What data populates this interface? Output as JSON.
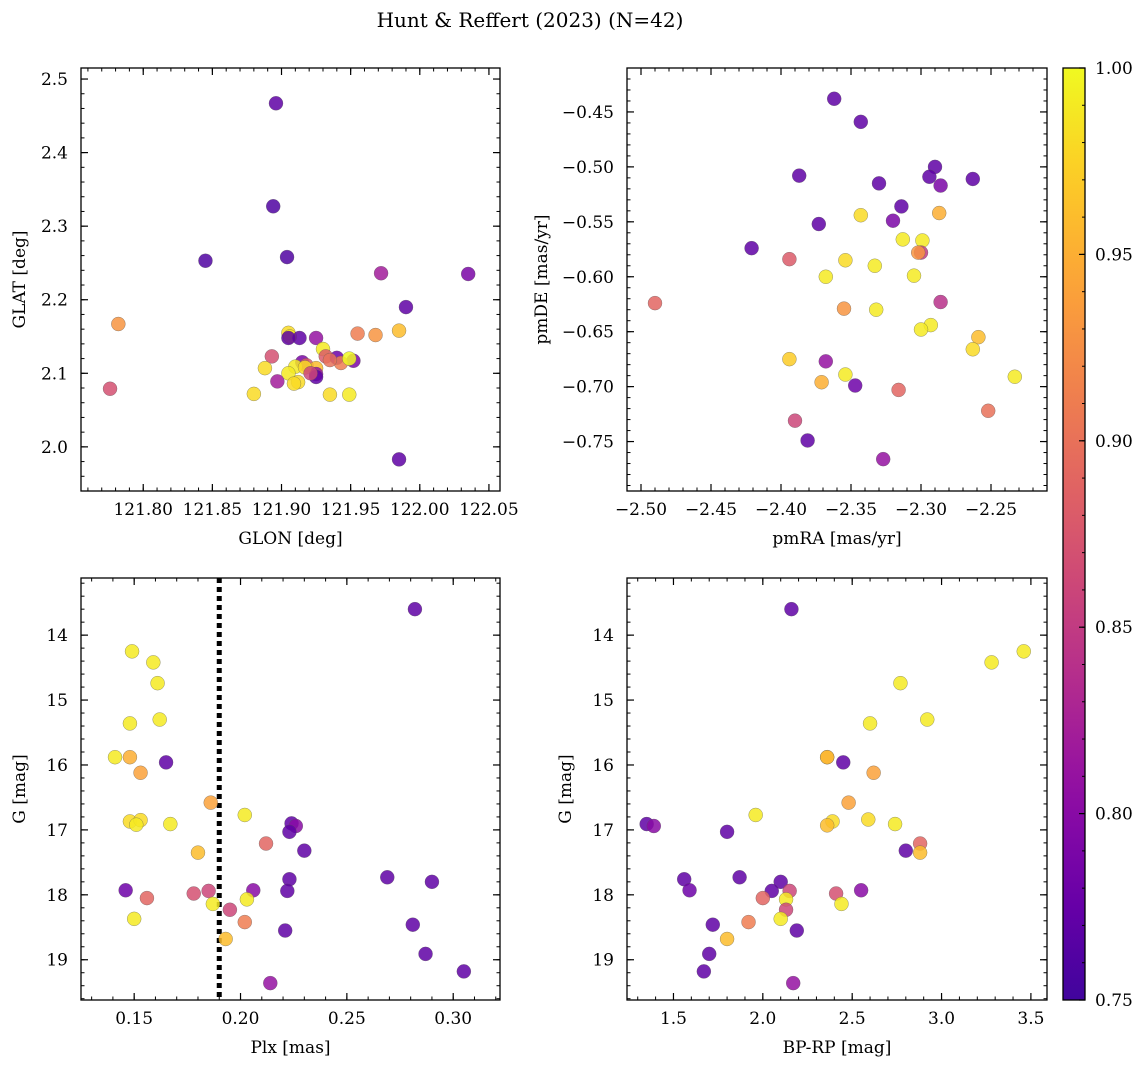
{
  "title": "Hunt & Reffert (2023) (N=42)",
  "colorbar": {
    "min": 0.75,
    "max": 1.0,
    "ticks": [
      0.75,
      0.8,
      0.85,
      0.9,
      0.95,
      1.0
    ],
    "tick_labels": [
      "0.75",
      "0.80",
      "0.85",
      "0.90",
      "0.95",
      "1.00"
    ],
    "colormap": "plasma"
  },
  "chart_data": [
    {
      "type": "scatter",
      "panel": "top-left",
      "xlabel": "GLON [deg]",
      "ylabel": "GLAT [deg]",
      "xlim": [
        121.755,
        122.058
      ],
      "ylim": [
        1.94,
        2.515
      ],
      "y_inverted": false,
      "xticks": [
        121.75,
        121.8,
        121.85,
        121.9,
        121.95,
        122.0,
        122.05
      ],
      "xtick_labels": [
        "121.75",
        "121.80",
        "121.85",
        "121.90",
        "121.95",
        "122.00",
        "122.05"
      ],
      "yticks": [
        2.0,
        2.1,
        2.2,
        2.3,
        2.4,
        2.5
      ],
      "ytick_labels": [
        "2.0",
        "2.1",
        "2.2",
        "2.3",
        "2.4",
        "2.5"
      ],
      "points": [
        {
          "x": 121.896,
          "y": 2.467,
          "c": 0.77
        },
        {
          "x": 121.894,
          "y": 2.327,
          "c": 0.76
        },
        {
          "x": 121.845,
          "y": 2.253,
          "c": 0.76
        },
        {
          "x": 121.904,
          "y": 2.258,
          "c": 0.76
        },
        {
          "x": 121.972,
          "y": 2.236,
          "c": 0.82
        },
        {
          "x": 122.035,
          "y": 2.235,
          "c": 0.79
        },
        {
          "x": 121.99,
          "y": 2.19,
          "c": 0.77
        },
        {
          "x": 121.782,
          "y": 2.167,
          "c": 0.93
        },
        {
          "x": 121.776,
          "y": 2.079,
          "c": 0.87
        },
        {
          "x": 121.955,
          "y": 2.154,
          "c": 0.91
        },
        {
          "x": 121.968,
          "y": 2.152,
          "c": 0.93
        },
        {
          "x": 121.985,
          "y": 2.158,
          "c": 0.96
        },
        {
          "x": 121.905,
          "y": 2.155,
          "c": 0.98
        },
        {
          "x": 121.906,
          "y": 2.15,
          "c": 0.99
        },
        {
          "x": 121.913,
          "y": 2.148,
          "c": 0.77
        },
        {
          "x": 121.905,
          "y": 2.148,
          "c": 0.77
        },
        {
          "x": 121.925,
          "y": 2.148,
          "c": 0.81
        },
        {
          "x": 121.93,
          "y": 2.133,
          "c": 0.99
        },
        {
          "x": 121.893,
          "y": 2.123,
          "c": 0.87
        },
        {
          "x": 121.932,
          "y": 2.123,
          "c": 0.88
        },
        {
          "x": 121.94,
          "y": 2.121,
          "c": 0.78
        },
        {
          "x": 121.952,
          "y": 2.117,
          "c": 0.79
        },
        {
          "x": 121.943,
          "y": 2.114,
          "c": 0.91
        },
        {
          "x": 121.915,
          "y": 2.115,
          "c": 0.79
        },
        {
          "x": 121.918,
          "y": 2.111,
          "c": 0.88
        },
        {
          "x": 121.91,
          "y": 2.109,
          "c": 0.99
        },
        {
          "x": 121.888,
          "y": 2.107,
          "c": 0.98
        },
        {
          "x": 121.925,
          "y": 2.107,
          "c": 0.96
        },
        {
          "x": 121.905,
          "y": 2.1,
          "c": 0.99
        },
        {
          "x": 121.925,
          "y": 2.099,
          "c": 0.81
        },
        {
          "x": 121.925,
          "y": 2.095,
          "c": 0.77
        },
        {
          "x": 121.897,
          "y": 2.089,
          "c": 0.82
        },
        {
          "x": 121.912,
          "y": 2.088,
          "c": 0.98
        },
        {
          "x": 121.909,
          "y": 2.086,
          "c": 0.98
        },
        {
          "x": 121.88,
          "y": 2.072,
          "c": 0.98
        },
        {
          "x": 121.935,
          "y": 2.071,
          "c": 0.98
        },
        {
          "x": 121.949,
          "y": 2.071,
          "c": 0.99
        },
        {
          "x": 121.985,
          "y": 1.983,
          "c": 0.77
        },
        {
          "x": 121.949,
          "y": 2.12,
          "c": 1.0
        },
        {
          "x": 121.917,
          "y": 2.108,
          "c": 0.98
        },
        {
          "x": 121.935,
          "y": 2.118,
          "c": 0.9
        },
        {
          "x": 121.921,
          "y": 2.1,
          "c": 0.86
        }
      ]
    },
    {
      "type": "scatter",
      "panel": "top-right",
      "xlabel": "pmRA [mas/yr]",
      "ylabel": "pmDE [mas/yr]",
      "xlim": [
        -2.51,
        -2.21
      ],
      "ylim": [
        -0.795,
        -0.41
      ],
      "y_inverted": false,
      "xticks": [
        -2.5,
        -2.45,
        -2.4,
        -2.35,
        -2.3,
        -2.25
      ],
      "xtick_labels": [
        "−2.50",
        "−2.45",
        "−2.40",
        "−2.35",
        "−2.30",
        "−2.25"
      ],
      "yticks": [
        -0.45,
        -0.5,
        -0.55,
        -0.6,
        -0.65,
        -0.7,
        -0.75
      ],
      "ytick_labels": [
        "−0.45",
        "−0.50",
        "−0.55",
        "−0.60",
        "−0.65",
        "−0.70",
        "−0.75"
      ],
      "points": [
        {
          "x": -2.362,
          "y": -0.438,
          "c": 0.77
        },
        {
          "x": -2.343,
          "y": -0.459,
          "c": 0.77
        },
        {
          "x": -2.29,
          "y": -0.5,
          "c": 0.77
        },
        {
          "x": -2.294,
          "y": -0.509,
          "c": 0.77
        },
        {
          "x": -2.387,
          "y": -0.508,
          "c": 0.77
        },
        {
          "x": -2.33,
          "y": -0.515,
          "c": 0.77
        },
        {
          "x": -2.286,
          "y": -0.517,
          "c": 0.79
        },
        {
          "x": -2.263,
          "y": -0.511,
          "c": 0.77
        },
        {
          "x": -2.314,
          "y": -0.536,
          "c": 0.77
        },
        {
          "x": -2.343,
          "y": -0.544,
          "c": 0.98
        },
        {
          "x": -2.287,
          "y": -0.542,
          "c": 0.95
        },
        {
          "x": -2.32,
          "y": -0.549,
          "c": 0.79
        },
        {
          "x": -2.373,
          "y": -0.552,
          "c": 0.77
        },
        {
          "x": -2.421,
          "y": -0.574,
          "c": 0.77
        },
        {
          "x": -2.313,
          "y": -0.566,
          "c": 0.99
        },
        {
          "x": -2.299,
          "y": -0.567,
          "c": 0.99
        },
        {
          "x": -2.3,
          "y": -0.578,
          "c": 0.85
        },
        {
          "x": -2.302,
          "y": -0.578,
          "c": 0.93
        },
        {
          "x": -2.394,
          "y": -0.584,
          "c": 0.88
        },
        {
          "x": -2.354,
          "y": -0.585,
          "c": 0.98
        },
        {
          "x": -2.333,
          "y": -0.59,
          "c": 0.99
        },
        {
          "x": -2.368,
          "y": -0.6,
          "c": 0.99
        },
        {
          "x": -2.305,
          "y": -0.599,
          "c": 0.99
        },
        {
          "x": -2.49,
          "y": -0.624,
          "c": 0.89
        },
        {
          "x": -2.286,
          "y": -0.623,
          "c": 0.84
        },
        {
          "x": -2.355,
          "y": -0.629,
          "c": 0.93
        },
        {
          "x": -2.332,
          "y": -0.63,
          "c": 0.99
        },
        {
          "x": -2.293,
          "y": -0.644,
          "c": 0.99
        },
        {
          "x": -2.3,
          "y": -0.648,
          "c": 0.99
        },
        {
          "x": -2.259,
          "y": -0.655,
          "c": 0.96
        },
        {
          "x": -2.263,
          "y": -0.666,
          "c": 0.98
        },
        {
          "x": -2.394,
          "y": -0.675,
          "c": 0.97
        },
        {
          "x": -2.368,
          "y": -0.677,
          "c": 0.81
        },
        {
          "x": -2.354,
          "y": -0.689,
          "c": 0.99
        },
        {
          "x": -2.233,
          "y": -0.691,
          "c": 0.99
        },
        {
          "x": -2.371,
          "y": -0.696,
          "c": 0.95
        },
        {
          "x": -2.347,
          "y": -0.699,
          "c": 0.78
        },
        {
          "x": -2.316,
          "y": -0.703,
          "c": 0.89
        },
        {
          "x": -2.252,
          "y": -0.722,
          "c": 0.9
        },
        {
          "x": -2.39,
          "y": -0.731,
          "c": 0.86
        },
        {
          "x": -2.381,
          "y": -0.749,
          "c": 0.77
        },
        {
          "x": -2.327,
          "y": -0.766,
          "c": 0.81
        }
      ]
    },
    {
      "type": "scatter",
      "panel": "bottom-left",
      "xlabel": "Plx [mas]",
      "ylabel": "G [mag]",
      "xlim": [
        0.125,
        0.322
      ],
      "ylim": [
        19.62,
        13.12
      ],
      "y_inverted": true,
      "xticks": [
        0.15,
        0.2,
        0.25,
        0.3
      ],
      "xtick_labels": [
        "0.15",
        "0.20",
        "0.25",
        "0.30"
      ],
      "yticks": [
        14,
        15,
        16,
        17,
        18,
        19
      ],
      "ytick_labels": [
        "14",
        "15",
        "16",
        "17",
        "18",
        "19"
      ],
      "vline": {
        "x": 0.19,
        "style": "dotted",
        "color": "#000000"
      },
      "points": [
        {
          "x": 0.282,
          "y": 13.6,
          "c": 0.77
        },
        {
          "x": 0.149,
          "y": 14.25,
          "c": 0.99
        },
        {
          "x": 0.159,
          "y": 14.42,
          "c": 0.99
        },
        {
          "x": 0.161,
          "y": 14.74,
          "c": 0.99
        },
        {
          "x": 0.162,
          "y": 15.3,
          "c": 0.99
        },
        {
          "x": 0.148,
          "y": 15.36,
          "c": 0.99
        },
        {
          "x": 0.141,
          "y": 15.88,
          "c": 0.99
        },
        {
          "x": 0.148,
          "y": 15.88,
          "c": 0.95
        },
        {
          "x": 0.165,
          "y": 15.96,
          "c": 0.77
        },
        {
          "x": 0.153,
          "y": 16.12,
          "c": 0.94
        },
        {
          "x": 0.186,
          "y": 16.58,
          "c": 0.94
        },
        {
          "x": 0.202,
          "y": 16.77,
          "c": 0.99
        },
        {
          "x": 0.148,
          "y": 16.87,
          "c": 0.98
        },
        {
          "x": 0.153,
          "y": 16.85,
          "c": 0.98
        },
        {
          "x": 0.151,
          "y": 16.92,
          "c": 0.99
        },
        {
          "x": 0.167,
          "y": 16.91,
          "c": 0.99
        },
        {
          "x": 0.224,
          "y": 16.9,
          "c": 0.77
        },
        {
          "x": 0.226,
          "y": 16.94,
          "c": 0.8
        },
        {
          "x": 0.223,
          "y": 17.03,
          "c": 0.77
        },
        {
          "x": 0.212,
          "y": 17.21,
          "c": 0.89
        },
        {
          "x": 0.23,
          "y": 17.32,
          "c": 0.77
        },
        {
          "x": 0.18,
          "y": 17.35,
          "c": 0.96
        },
        {
          "x": 0.269,
          "y": 17.73,
          "c": 0.77
        },
        {
          "x": 0.223,
          "y": 17.76,
          "c": 0.77
        },
        {
          "x": 0.29,
          "y": 17.8,
          "c": 0.77
        },
        {
          "x": 0.146,
          "y": 17.93,
          "c": 0.78
        },
        {
          "x": 0.206,
          "y": 17.93,
          "c": 0.8
        },
        {
          "x": 0.185,
          "y": 17.94,
          "c": 0.86
        },
        {
          "x": 0.222,
          "y": 17.94,
          "c": 0.77
        },
        {
          "x": 0.178,
          "y": 17.98,
          "c": 0.87
        },
        {
          "x": 0.156,
          "y": 18.05,
          "c": 0.89
        },
        {
          "x": 0.203,
          "y": 18.07,
          "c": 0.99
        },
        {
          "x": 0.187,
          "y": 18.14,
          "c": 0.99
        },
        {
          "x": 0.195,
          "y": 18.23,
          "c": 0.86
        },
        {
          "x": 0.15,
          "y": 18.37,
          "c": 0.99
        },
        {
          "x": 0.202,
          "y": 18.42,
          "c": 0.91
        },
        {
          "x": 0.281,
          "y": 18.46,
          "c": 0.77
        },
        {
          "x": 0.221,
          "y": 18.55,
          "c": 0.77
        },
        {
          "x": 0.193,
          "y": 18.68,
          "c": 0.96
        },
        {
          "x": 0.287,
          "y": 18.91,
          "c": 0.77
        },
        {
          "x": 0.305,
          "y": 19.18,
          "c": 0.77
        },
        {
          "x": 0.214,
          "y": 19.36,
          "c": 0.81
        }
      ]
    },
    {
      "type": "scatter",
      "panel": "bottom-right",
      "xlabel": "BP-RP [mag]",
      "ylabel": "G [mag]",
      "xlim": [
        1.24,
        3.59
      ],
      "ylim": [
        19.62,
        13.12
      ],
      "y_inverted": true,
      "xticks": [
        1.5,
        2.0,
        2.5,
        3.0,
        3.5
      ],
      "xtick_labels": [
        "1.5",
        "2.0",
        "2.5",
        "3.0",
        "3.5"
      ],
      "yticks": [
        14,
        15,
        16,
        17,
        18,
        19
      ],
      "ytick_labels": [
        "14",
        "15",
        "16",
        "17",
        "18",
        "19"
      ],
      "points": [
        {
          "x": 2.16,
          "y": 13.6,
          "c": 0.77
        },
        {
          "x": 3.46,
          "y": 14.25,
          "c": 0.99
        },
        {
          "x": 3.28,
          "y": 14.42,
          "c": 0.99
        },
        {
          "x": 2.77,
          "y": 14.74,
          "c": 0.99
        },
        {
          "x": 2.92,
          "y": 15.3,
          "c": 0.99
        },
        {
          "x": 2.6,
          "y": 15.36,
          "c": 0.99
        },
        {
          "x": 2.36,
          "y": 15.88,
          "c": 0.99
        },
        {
          "x": 2.36,
          "y": 15.88,
          "c": 0.95
        },
        {
          "x": 2.45,
          "y": 15.96,
          "c": 0.77
        },
        {
          "x": 2.62,
          "y": 16.12,
          "c": 0.94
        },
        {
          "x": 2.48,
          "y": 16.58,
          "c": 0.94
        },
        {
          "x": 1.96,
          "y": 16.77,
          "c": 0.99
        },
        {
          "x": 2.59,
          "y": 16.84,
          "c": 0.98
        },
        {
          "x": 2.39,
          "y": 16.87,
          "c": 0.98
        },
        {
          "x": 2.36,
          "y": 16.93,
          "c": 0.96
        },
        {
          "x": 2.74,
          "y": 16.91,
          "c": 0.99
        },
        {
          "x": 1.35,
          "y": 16.91,
          "c": 0.77
        },
        {
          "x": 1.39,
          "y": 16.94,
          "c": 0.8
        },
        {
          "x": 1.8,
          "y": 17.03,
          "c": 0.77
        },
        {
          "x": 2.88,
          "y": 17.21,
          "c": 0.89
        },
        {
          "x": 2.8,
          "y": 17.32,
          "c": 0.77
        },
        {
          "x": 2.88,
          "y": 17.35,
          "c": 0.96
        },
        {
          "x": 1.56,
          "y": 17.76,
          "c": 0.77
        },
        {
          "x": 1.87,
          "y": 17.73,
          "c": 0.77
        },
        {
          "x": 2.1,
          "y": 17.8,
          "c": 0.77
        },
        {
          "x": 1.59,
          "y": 17.93,
          "c": 0.78
        },
        {
          "x": 2.55,
          "y": 17.93,
          "c": 0.8
        },
        {
          "x": 2.15,
          "y": 17.94,
          "c": 0.86
        },
        {
          "x": 2.05,
          "y": 17.94,
          "c": 0.77
        },
        {
          "x": 2.41,
          "y": 17.98,
          "c": 0.87
        },
        {
          "x": 2.0,
          "y": 18.05,
          "c": 0.89
        },
        {
          "x": 2.13,
          "y": 18.07,
          "c": 0.99
        },
        {
          "x": 2.44,
          "y": 18.14,
          "c": 0.99
        },
        {
          "x": 2.13,
          "y": 18.23,
          "c": 0.86
        },
        {
          "x": 2.1,
          "y": 18.37,
          "c": 0.99
        },
        {
          "x": 1.92,
          "y": 18.42,
          "c": 0.91
        },
        {
          "x": 1.72,
          "y": 18.46,
          "c": 0.77
        },
        {
          "x": 2.19,
          "y": 18.55,
          "c": 0.77
        },
        {
          "x": 1.8,
          "y": 18.68,
          "c": 0.96
        },
        {
          "x": 1.7,
          "y": 18.91,
          "c": 0.77
        },
        {
          "x": 1.67,
          "y": 19.18,
          "c": 0.77
        },
        {
          "x": 2.17,
          "y": 19.36,
          "c": 0.81
        }
      ]
    }
  ]
}
